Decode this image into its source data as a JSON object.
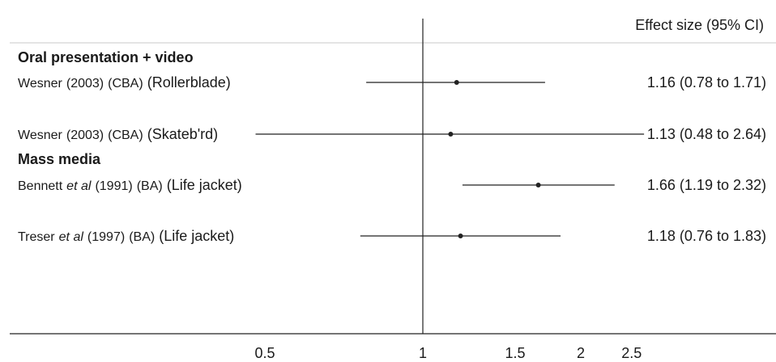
{
  "chart_data": {
    "type": "forest",
    "xscale": "log",
    "reference_line": 1,
    "xticks": [
      0.5,
      1,
      1.5,
      2,
      2.5
    ],
    "xtick_labels": [
      "0.5",
      "1",
      "1.5",
      "2",
      "2.5"
    ],
    "column_header": "Effect size (95% CI)",
    "groups": [
      {
        "name": "Oral presentation + video",
        "studies": [
          {
            "author": "Wesner",
            "year": "(2003)",
            "design": "(CBA)",
            "intervention": "(Rollerblade)",
            "estimate": 1.16,
            "ci_low": 0.78,
            "ci_high": 1.71,
            "label": "1.16 (0.78  to 1.71)"
          },
          {
            "author": "Wesner",
            "year": "(2003)",
            "design": "(CBA)",
            "intervention": "(Skateb'rd)",
            "estimate": 1.13,
            "ci_low": 0.48,
            "ci_high": 2.64,
            "label": "1.13 (0.48  to 2.64)"
          }
        ]
      },
      {
        "name": "Mass media",
        "studies": [
          {
            "author": "Bennett",
            "etal": "et al",
            "year": "(1991)",
            "design": "(BA)",
            "intervention": "(Life jacket)",
            "estimate": 1.66,
            "ci_low": 1.19,
            "ci_high": 2.32,
            "label": "1.66 (1.19  to 2.32)"
          },
          {
            "author": "Treser",
            "etal": "et al",
            "year": "(1997)",
            "design": "(BA)",
            "intervention": "(Life jacket)",
            "estimate": 1.18,
            "ci_low": 0.76,
            "ci_high": 1.83,
            "label": "1.18 (0.76  to 1.83)"
          }
        ]
      }
    ]
  }
}
